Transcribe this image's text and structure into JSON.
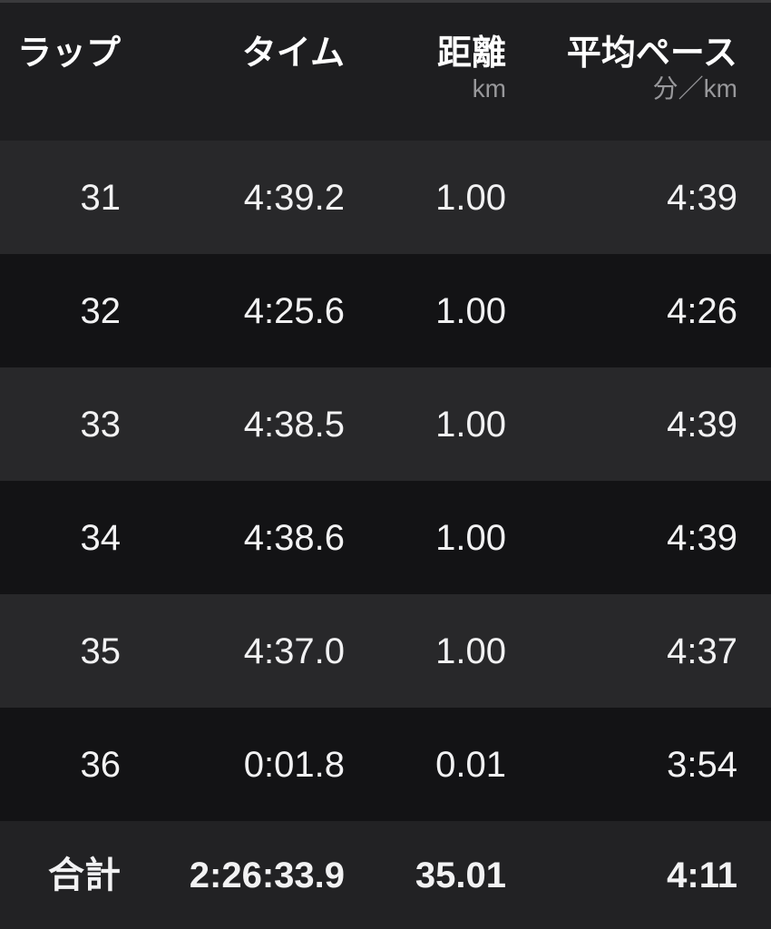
{
  "table": {
    "columns": [
      {
        "id": "lap",
        "label": "ラップ",
        "unit": ""
      },
      {
        "id": "time",
        "label": "タイム",
        "unit": ""
      },
      {
        "id": "distance",
        "label": "距離",
        "unit": "km"
      },
      {
        "id": "pace",
        "label": "平均ペース",
        "unit": "分／km"
      }
    ],
    "rows": [
      {
        "lap": "31",
        "time": "4:39.2",
        "distance": "1.00",
        "pace": "4:39"
      },
      {
        "lap": "32",
        "time": "4:25.6",
        "distance": "1.00",
        "pace": "4:26"
      },
      {
        "lap": "33",
        "time": "4:38.5",
        "distance": "1.00",
        "pace": "4:39"
      },
      {
        "lap": "34",
        "time": "4:38.6",
        "distance": "1.00",
        "pace": "4:39"
      },
      {
        "lap": "35",
        "time": "4:37.0",
        "distance": "1.00",
        "pace": "4:37"
      },
      {
        "lap": "36",
        "time": "0:01.8",
        "distance": "0.01",
        "pace": "3:54"
      }
    ],
    "total": {
      "lap": "合計",
      "time": "2:26:33.9",
      "distance": "35.01",
      "pace": "4:11"
    }
  },
  "colors": {
    "page_bg": "#131315",
    "header_bg": "#1e1e20",
    "row_light_bg": "#28282a",
    "row_dark_bg": "#131315",
    "total_bg": "#222224",
    "top_strip": "#3a3a3c",
    "text_primary": "#f2f2f3",
    "text_unit": "#98989b"
  }
}
